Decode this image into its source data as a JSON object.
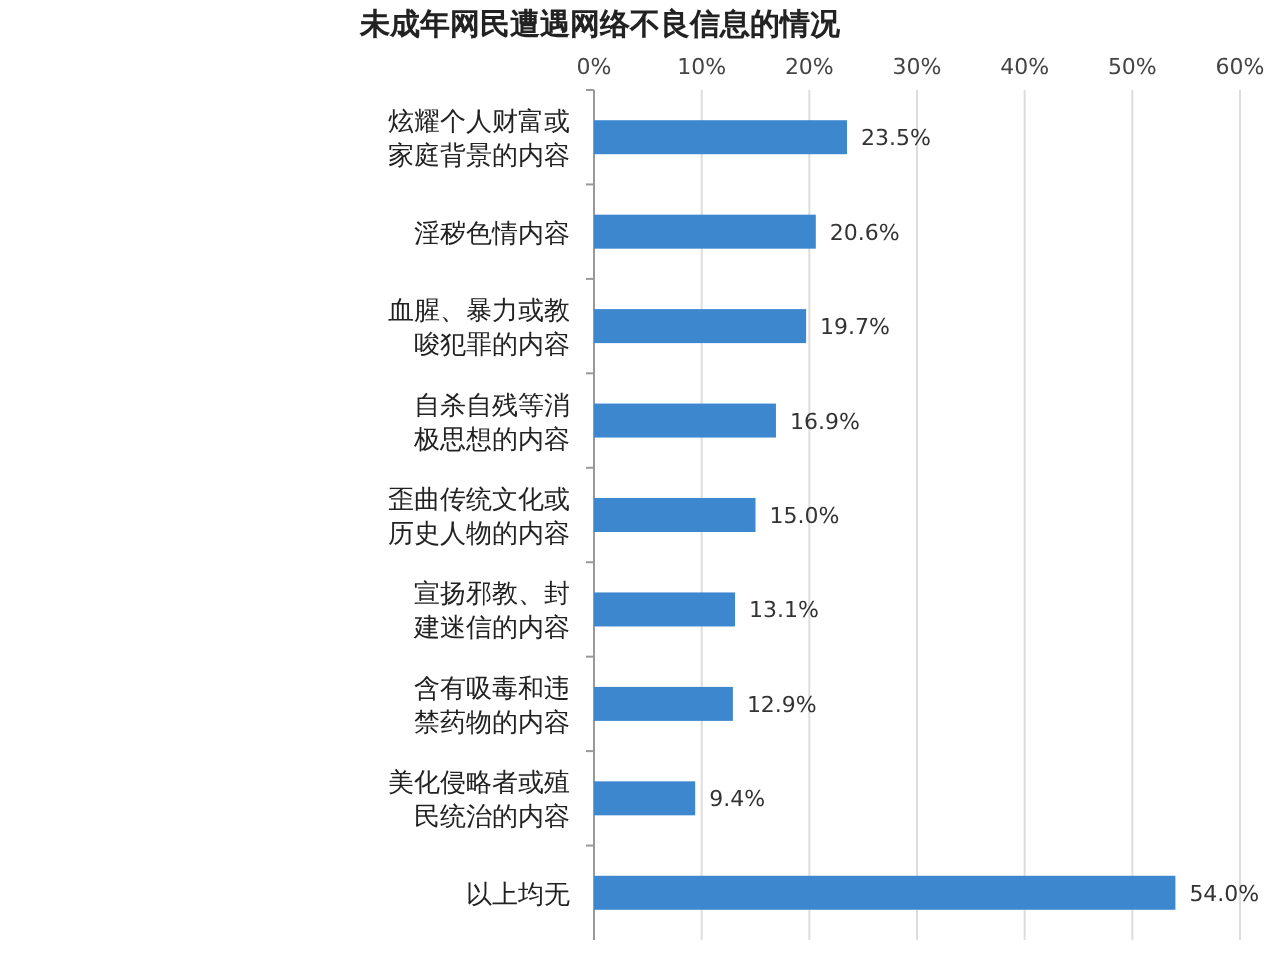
{
  "chart_data": {
    "type": "bar",
    "orientation": "horizontal",
    "title": "未成年网民遭遇网络不良信息的情况",
    "categories": [
      "炫耀个人财富或家庭背景的内容",
      "淫秽色情内容",
      "血腥、暴力或教唆犯罪的内容",
      "自杀自残等消极思想的内容",
      "歪曲传统文化或历史人物的内容",
      "宣扬邪教、封建迷信的内容",
      "含有吸毒和违禁药物的内容",
      "美化侵略者或殖民统治的内容",
      "以上均无"
    ],
    "values": [
      23.5,
      20.6,
      19.7,
      16.9,
      15.0,
      13.1,
      12.9,
      9.4,
      54.0
    ],
    "value_labels": [
      "23.5%",
      "20.6%",
      "19.7%",
      "16.9%",
      "15.0%",
      "13.1%",
      "12.9%",
      "9.4%",
      "54.0%"
    ],
    "color": "#3d87cf",
    "xlim": [
      0,
      60
    ],
    "xticks": [
      {
        "value": 0,
        "label": "0%"
      },
      {
        "value": 10,
        "label": "10%"
      },
      {
        "value": 20,
        "label": "20%"
      },
      {
        "value": 30,
        "label": "30%"
      },
      {
        "value": 40,
        "label": "40%"
      },
      {
        "value": 50,
        "label": "50%"
      },
      {
        "value": 60,
        "label": "60%"
      }
    ],
    "grid": "x"
  }
}
